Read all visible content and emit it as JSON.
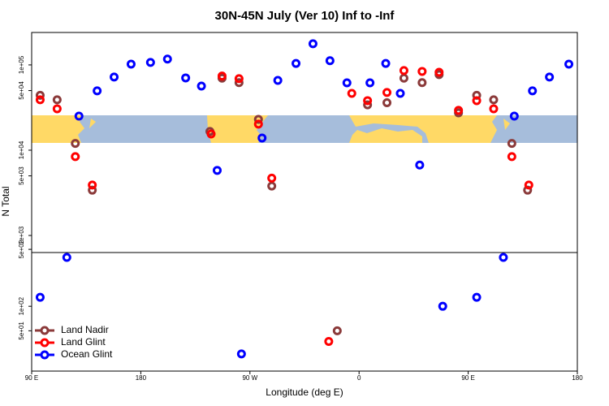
{
  "chart_data": {
    "type": "scatter",
    "title": "30N-45N July (Ver 10)   Inf to -Inf",
    "x_label": "Longitude (deg E)",
    "y_label": "N Total",
    "xlim": [
      90,
      540
    ],
    "xticks": [
      {
        "value": 90,
        "label": "90 E"
      },
      {
        "value": 180,
        "label": "180"
      },
      {
        "value": 270,
        "label": "90 W"
      },
      {
        "value": 360,
        "label": "0"
      },
      {
        "value": 450,
        "label": "90 E"
      },
      {
        "value": 540,
        "label": "180"
      }
    ],
    "ylim": [
      631,
      240000
    ],
    "log_scale": true,
    "yticks": [
      {
        "value": 1000,
        "label": "1e+03"
      },
      {
        "value": 5000,
        "label": "5e+03"
      },
      {
        "value": 10000,
        "label": "1e+04"
      },
      {
        "value": 50000,
        "label": "5e+04"
      },
      {
        "value": 100000,
        "label": "1e+05"
      }
    ],
    "lower_panel": {
      "ylim": [
        16,
        457
      ],
      "yticks": [
        {
          "value": 50,
          "label": "5e+01"
        },
        {
          "value": 100,
          "label": "1e+02"
        },
        {
          "value": 500,
          "label": "5e+02"
        }
      ]
    },
    "legend": "bottom-left",
    "series": [
      {
        "name": "Land Nadir",
        "color": "#8b3a3a",
        "x": [
          97,
          111,
          126,
          140,
          237,
          247,
          261,
          277,
          288,
          342,
          367,
          383,
          397,
          412,
          426,
          442,
          457,
          471,
          486,
          499
        ],
        "values": [
          44000,
          39000,
          12000,
          3400,
          16600,
          70000,
          62000,
          23000,
          3800,
          50,
          34000,
          36000,
          70000,
          62000,
          77000,
          27400,
          44000,
          39000,
          12000,
          3400
        ]
      },
      {
        "name": "Land Glint",
        "color": "#ff0000",
        "x": [
          97,
          111,
          126,
          140,
          238,
          247,
          261,
          277,
          288,
          335,
          354,
          367,
          383,
          397,
          412,
          426,
          442,
          457,
          471,
          486,
          500
        ],
        "values": [
          39000,
          30600,
          8400,
          3900,
          15500,
          74000,
          69000,
          20200,
          4700,
          37,
          46400,
          38100,
          47500,
          85800,
          83900,
          82000,
          29300,
          38100,
          30600,
          8400,
          3900
        ]
      },
      {
        "name": "Ocean Glint",
        "color": "#0000ff",
        "x": [
          97,
          119,
          129,
          144,
          158,
          172,
          188,
          202,
          217,
          230,
          243,
          263,
          280,
          293,
          308,
          322,
          336,
          350,
          369,
          382,
          394,
          410,
          429,
          457,
          479,
          488,
          503,
          517,
          533
        ],
        "values": [
          129,
          398,
          25100,
          49600,
          72000,
          102000,
          107000,
          117000,
          70400,
          56500,
          5800,
          26,
          13900,
          65900,
          104000,
          177000,
          112000,
          61700,
          61700,
          104000,
          46400,
          6700,
          100,
          129,
          398,
          25100,
          49600,
          72000,
          102000
        ]
      }
    ]
  }
}
